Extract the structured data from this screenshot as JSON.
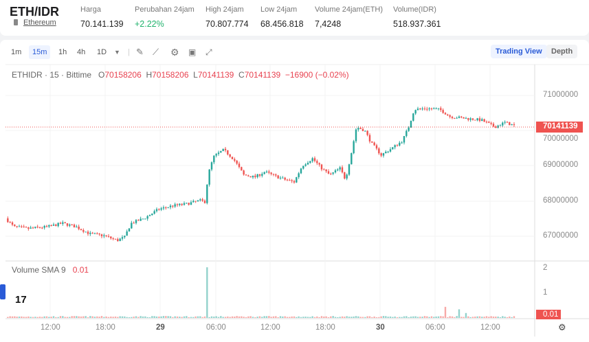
{
  "header": {
    "pair": "ETH/IDR",
    "coin": "Ethereum",
    "stats": [
      {
        "label": "Harga",
        "value": "70.141.139"
      },
      {
        "label": "Perubahan 24jam",
        "value": "+2.22%"
      },
      {
        "label": "High 24jam",
        "value": "70.807.774"
      },
      {
        "label": "Low 24jam",
        "value": "68.456.818"
      },
      {
        "label": "Volume 24jam(ETH)",
        "value": "7,4248"
      },
      {
        "label": "Volume(IDR)",
        "value": "518.937.361"
      }
    ]
  },
  "toolbar": {
    "intervals": [
      "1m",
      "15m",
      "1h",
      "4h",
      "1D"
    ],
    "active": "15m",
    "trading_view": "Trading View",
    "depth": "Depth"
  },
  "legend": {
    "symbol": "ETHIDR · 15 · Bittime",
    "o_label": "O",
    "o": "70158206",
    "h_label": "H",
    "h": "70158206",
    "l_label": "L",
    "l": "70141139",
    "c_label": "C",
    "c": "70141139",
    "change": "−16900 (−0.02%)",
    "volume_label": "Volume SMA 9",
    "volume_value": "0.01"
  },
  "price_axis": {
    "ticks": [
      "71000000",
      "70000000",
      "69000000",
      "68000000",
      "67000000"
    ],
    "last_price": "70141139",
    "volume_ticks": [
      "2",
      "1"
    ],
    "volume_last": "0.01"
  },
  "time_axis": {
    "ticks": [
      "12:00",
      "18:00",
      "29",
      "06:00",
      "12:00",
      "18:00",
      "30",
      "06:00",
      "12:00"
    ]
  },
  "colors": {
    "up": "#26a69a",
    "down": "#ef5350",
    "accent": "#2a5bd7",
    "positive": "#20b26c"
  },
  "price_path_hours": [
    [
      0,
      67.49
    ],
    [
      0.9,
      67.25
    ],
    [
      2.4,
      67.2
    ],
    [
      4.6,
      67.25
    ],
    [
      6.2,
      67.35
    ],
    [
      7.7,
      67.25
    ],
    [
      9.2,
      67.05
    ],
    [
      10.7,
      67.0
    ],
    [
      12.2,
      66.86
    ],
    [
      13,
      66.96
    ],
    [
      13.7,
      67.35
    ],
    [
      15.2,
      67.5
    ],
    [
      16.7,
      67.75
    ],
    [
      18.2,
      67.85
    ],
    [
      19.7,
      67.9
    ],
    [
      21.2,
      68.0
    ],
    [
      21.8,
      67.96
    ],
    [
      22.1,
      68.73
    ],
    [
      22.7,
      69.25
    ],
    [
      23.8,
      69.45
    ],
    [
      24.9,
      69.18
    ],
    [
      26,
      68.73
    ],
    [
      27.2,
      68.67
    ],
    [
      28.3,
      68.82
    ],
    [
      29.4,
      68.7
    ],
    [
      30.5,
      68.6
    ],
    [
      31.5,
      68.53
    ],
    [
      32.4,
      69.0
    ],
    [
      33.5,
      69.2
    ],
    [
      34.5,
      68.92
    ],
    [
      35.4,
      68.73
    ],
    [
      36.5,
      68.92
    ],
    [
      37.1,
      68.6
    ],
    [
      37.7,
      69.3
    ],
    [
      38.3,
      70.1
    ],
    [
      39.2,
      70.0
    ],
    [
      39.9,
      69.65
    ],
    [
      41,
      69.3
    ],
    [
      42.2,
      69.5
    ],
    [
      43.3,
      69.7
    ],
    [
      44,
      70.1
    ],
    [
      44.6,
      70.6
    ],
    [
      45.9,
      70.63
    ],
    [
      47.4,
      70.6
    ],
    [
      48.5,
      70.4
    ],
    [
      50,
      70.35
    ],
    [
      51.9,
      70.3
    ],
    [
      53.4,
      70.1
    ],
    [
      54.5,
      70.23
    ],
    [
      55.5,
      70.14
    ]
  ],
  "volume_spikes": [
    [
      22,
      2.05
    ],
    [
      48,
      0.45
    ],
    [
      49.5,
      0.35
    ],
    [
      50.3,
      0.2
    ]
  ]
}
